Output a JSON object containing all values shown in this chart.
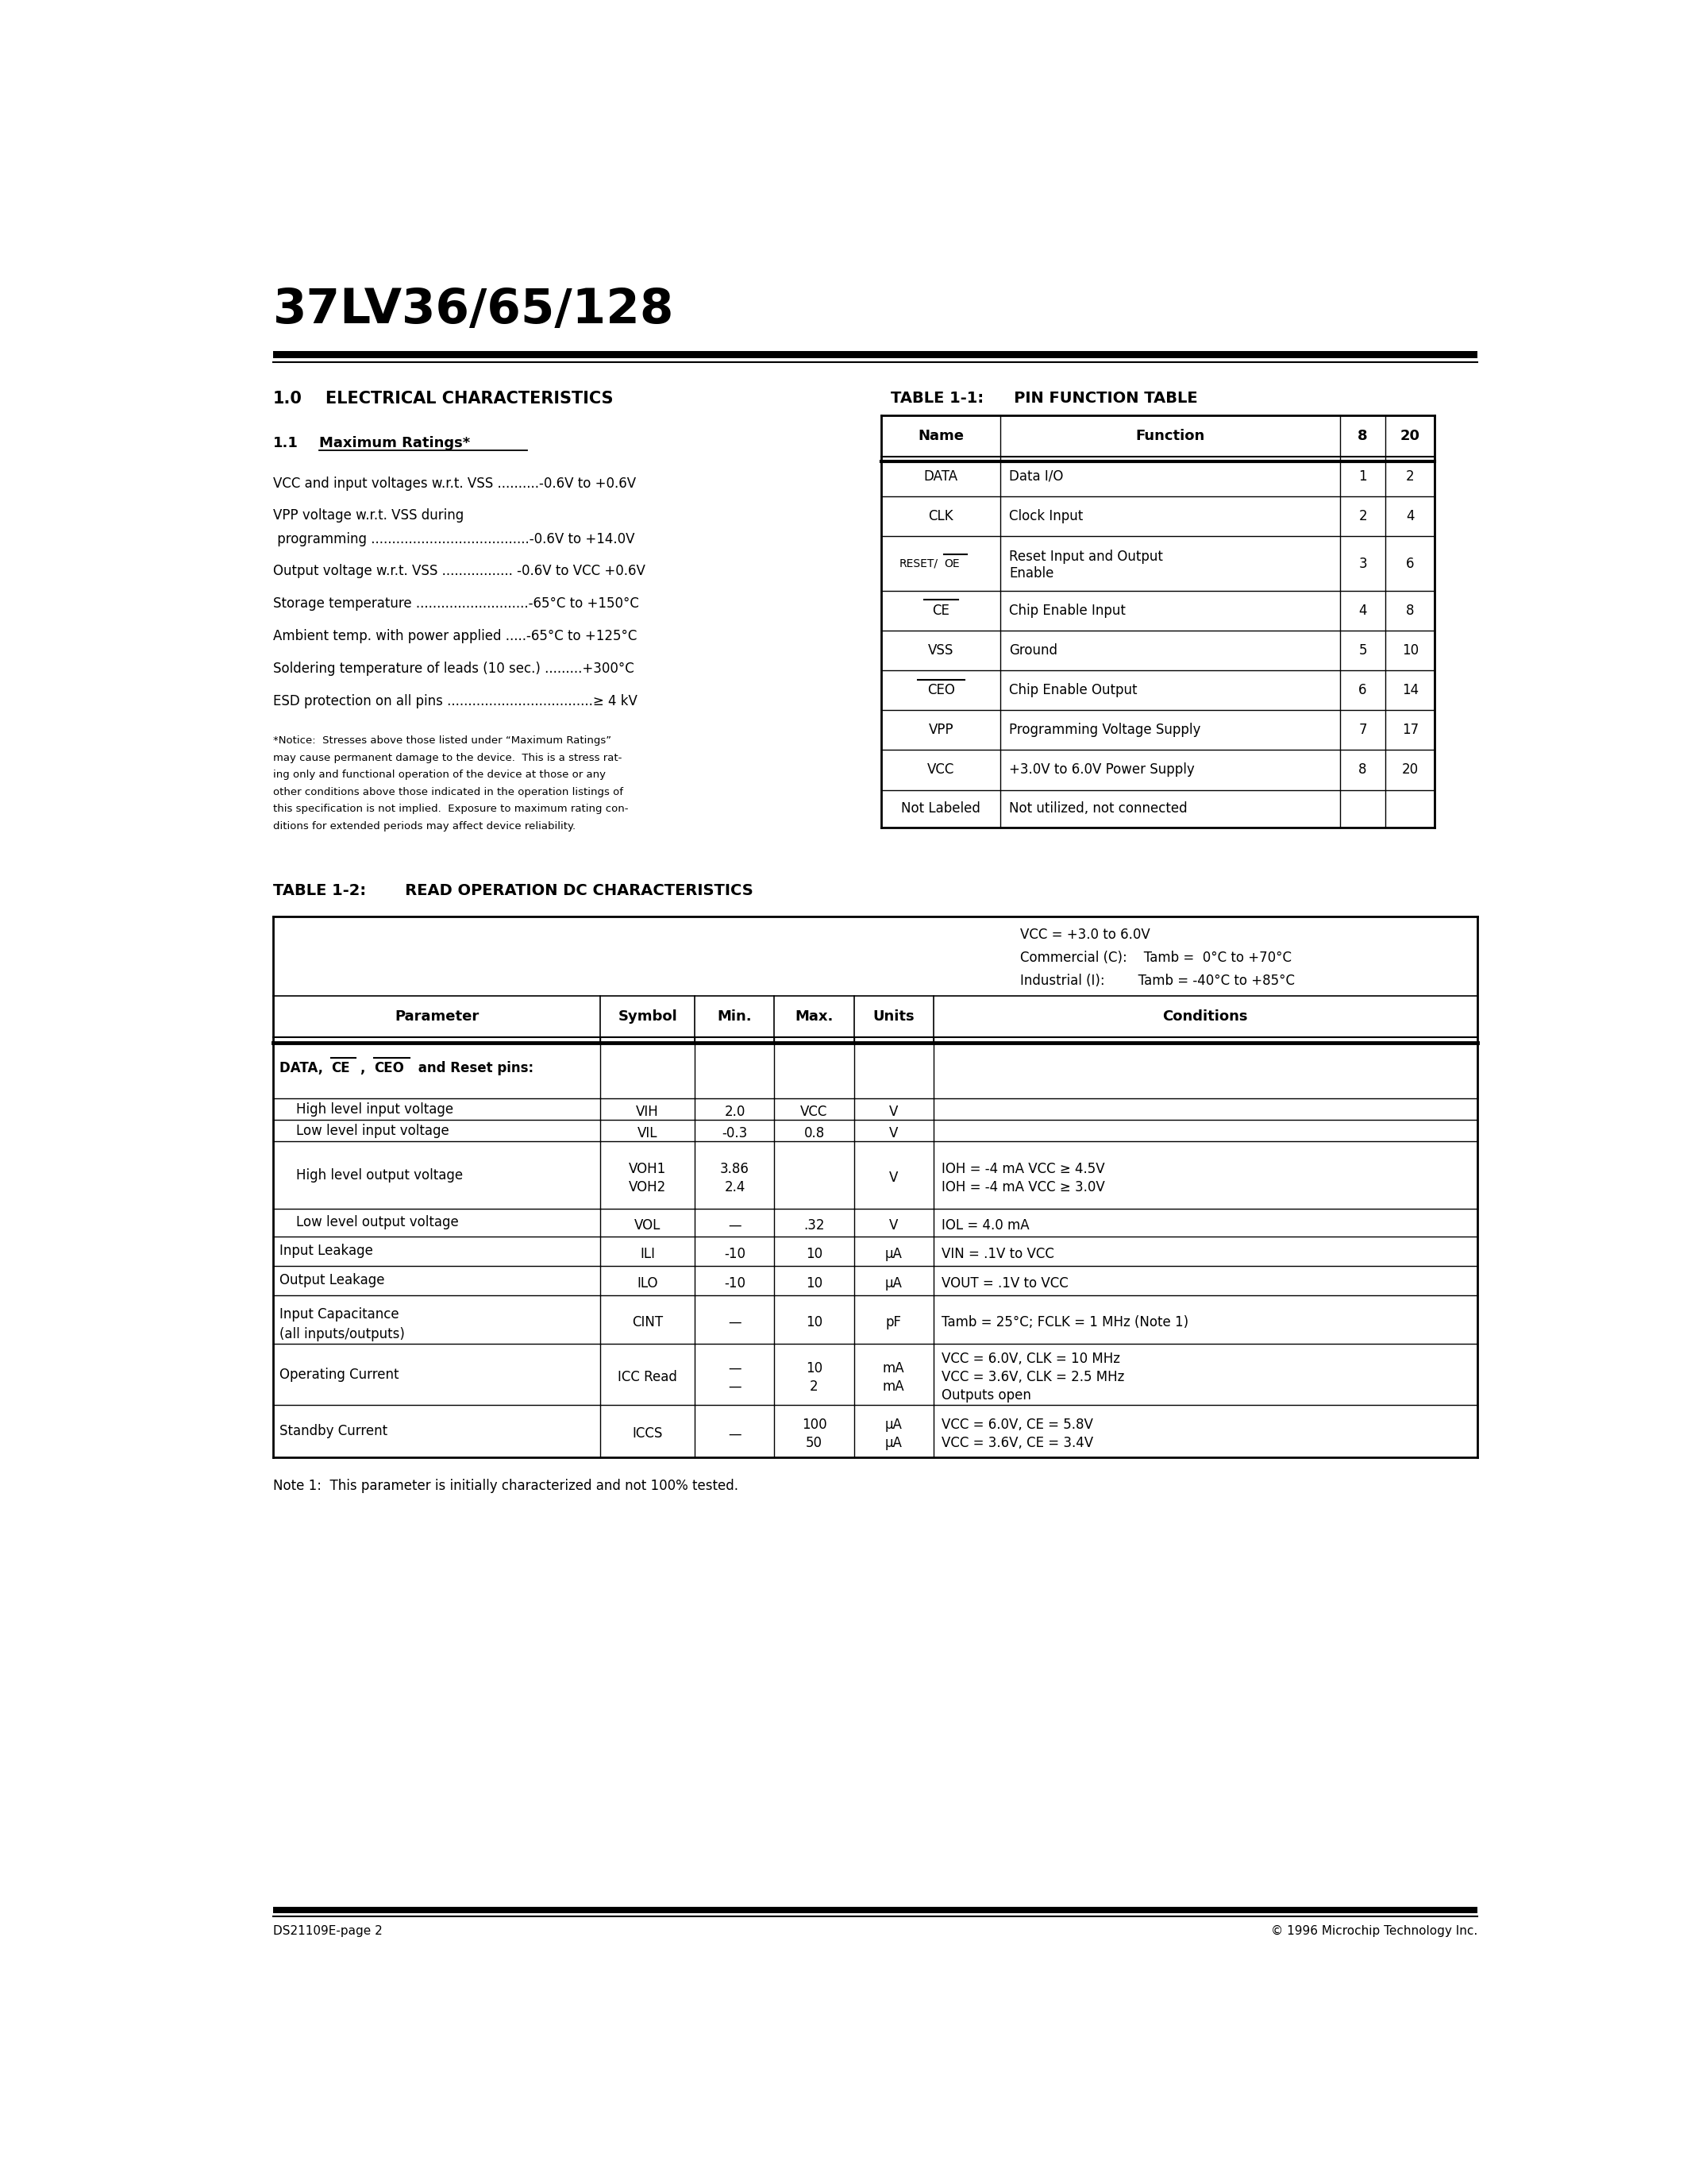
{
  "title": "37LV36/65/128",
  "footer_left": "DS21109E-page 2",
  "footer_right": "© 1996 Microchip Technology Inc.",
  "pin_table_rows": [
    [
      "DATA",
      "Data I/O",
      "1",
      "2"
    ],
    [
      "CLK",
      "Clock Input",
      "2",
      "4"
    ],
    [
      "RESET/OE",
      "Reset Input and Output\nEnable",
      "3",
      "6"
    ],
    [
      "CE",
      "Chip Enable Input",
      "4",
      "8"
    ],
    [
      "VSS",
      "Ground",
      "5",
      "10"
    ],
    [
      "CEO",
      "Chip Enable Output",
      "6",
      "14"
    ],
    [
      "VPP",
      "Programming Voltage Supply",
      "7",
      "17"
    ],
    [
      "VCC",
      "+3.0V to 6.0V Power Supply",
      "8",
      "20"
    ],
    [
      "Not Labeled",
      "Not utilized, not connected",
      "",
      ""
    ]
  ],
  "mr_lines": [
    "VCC and input voltages w.r.t. VSS ..........-0.6V to +0.6V",
    "VPP voltage w.r.t. VSS during",
    " programming ......................................-0.6V to +14.0V",
    "Output voltage w.r.t. VSS ................. -0.6V to VCC +0.6V",
    "Storage temperature ...........................-65°C to +150°C",
    "Ambient temp. with power applied .....-65°C to +125°C",
    "Soldering temperature of leads (10 sec.) .........+300°C",
    "ESD protection on all pins ...................................≥ 4 kV"
  ],
  "notice": "*Notice:  Stresses above those listed under “Maximum Ratings” may cause permanent damage to the device.  This is a stress rat-ing only and functional operation of the device at those or any other conditions above those indicated in the operation listings of this specification is not implied.  Exposure to maximum rating con-ditions for extended periods may affect device reliability.",
  "cond_lines": [
    "VCC = +3.0 to 6.0V",
    "Commercial (C):    Tamb =  0°C to +70°C",
    "Industrial (I):        Tamb = -40°C to +85°C"
  ],
  "note1": "Note 1:  This parameter is initially characterized and not 100% tested."
}
